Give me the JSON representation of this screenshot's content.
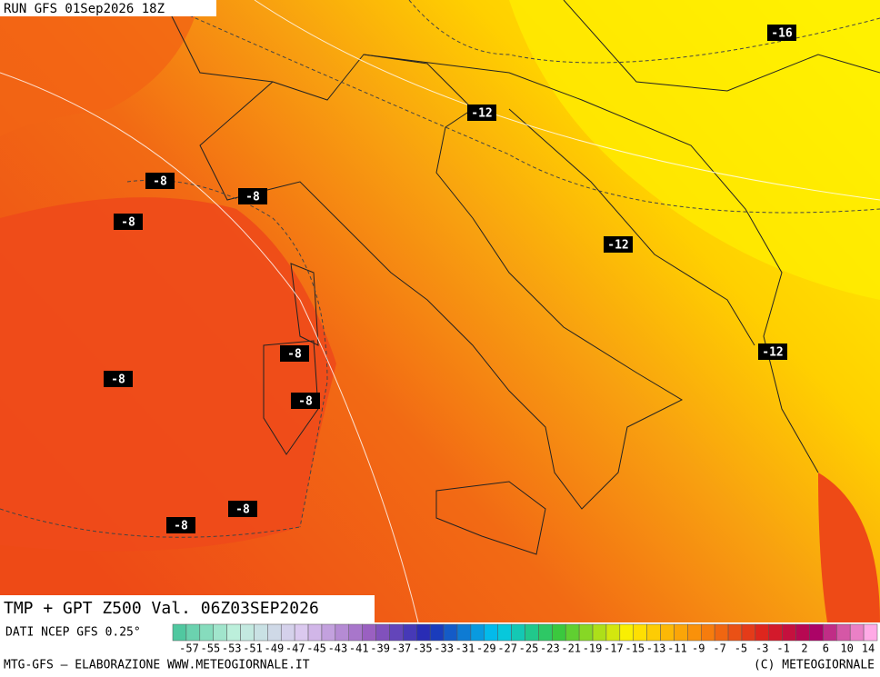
{
  "header": {
    "run": "RUN GFS 01Sep2026 18Z"
  },
  "map": {
    "title": "TMP + GPT Z500 Val. 06Z03SEP2026",
    "contour_labels": [
      "-16",
      "-12",
      "-12",
      "-12",
      "-8",
      "-8",
      "-8",
      "-8",
      "-8",
      "-8",
      "-8",
      "-8"
    ]
  },
  "legend": {
    "source": "DATI NCEP GFS 0.25°",
    "labels": [
      "-57",
      "-55",
      "-53",
      "-51",
      "-49",
      "-47",
      "-45",
      "-43",
      "-41",
      "-39",
      "-37",
      "-35",
      "-33",
      "-31",
      "-29",
      "-27",
      "-25",
      "-23",
      "-21",
      "-19",
      "-17",
      "-15",
      "-13",
      "-11",
      "-9",
      "-7",
      "-5",
      "-3",
      "-1",
      "2",
      "6",
      "10",
      "14"
    ]
  },
  "footer": {
    "left": "MTG-GFS – ELABORAZIONE WWW.METEOGIORNALE.IT",
    "right": "(C) METEOGIORNALE"
  }
}
